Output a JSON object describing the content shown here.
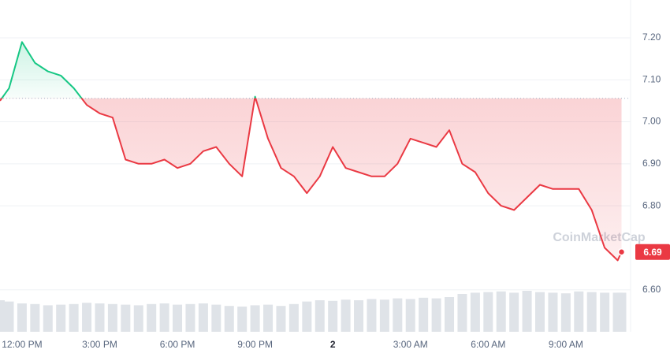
{
  "chart_data": {
    "type": "line",
    "x": [
      11.15,
      11.5,
      12,
      12.5,
      13,
      13.5,
      14,
      14.5,
      15,
      15.5,
      16,
      16.5,
      17,
      17.5,
      18,
      18.5,
      19,
      19.5,
      20,
      20.5,
      21,
      21.5,
      22,
      22.5,
      23,
      23.5,
      24,
      24.5,
      25,
      25.5,
      26,
      26.5,
      27,
      27.5,
      28,
      28.5,
      29,
      29.5,
      30,
      30.5,
      31,
      31.5,
      32,
      32.5,
      33,
      33.5,
      34,
      34.5,
      35,
      35.15
    ],
    "series": [
      {
        "values": [
          7.05,
          7.08,
          7.19,
          7.14,
          7.12,
          7.11,
          7.08,
          7.04,
          7.02,
          7.01,
          6.91,
          6.9,
          6.9,
          6.91,
          6.89,
          6.9,
          6.93,
          6.94,
          6.9,
          6.87,
          7.06,
          6.96,
          6.89,
          6.87,
          6.83,
          6.87,
          6.94,
          6.89,
          6.88,
          6.87,
          6.87,
          6.9,
          6.96,
          6.95,
          6.94,
          6.98,
          6.9,
          6.88,
          6.83,
          6.8,
          6.79,
          6.82,
          6.85,
          6.84,
          6.84,
          6.84,
          6.79,
          6.7,
          6.67,
          6.69
        ]
      }
    ],
    "volume": [
      50,
      48,
      45,
      44,
      42,
      43,
      44,
      46,
      45,
      44,
      43,
      42,
      44,
      45,
      43,
      44,
      45,
      43,
      41,
      40,
      42,
      43,
      41,
      44,
      48,
      50,
      49,
      51,
      50,
      52,
      51,
      53,
      52,
      54,
      53,
      55,
      60,
      62,
      63,
      64,
      62,
      65,
      63,
      62,
      61,
      64,
      63,
      62,
      62,
      62
    ],
    "volume_lim": [
      0,
      100
    ],
    "reference_line": 7.056,
    "xlim": [
      11.15,
      35.5
    ],
    "xticks": [
      {
        "value": 12,
        "label": "12:00 PM"
      },
      {
        "value": 15,
        "label": "3:00 PM"
      },
      {
        "value": 18,
        "label": "6:00 PM"
      },
      {
        "value": 21,
        "label": "9:00 PM"
      },
      {
        "value": 24,
        "label": "2"
      },
      {
        "value": 27,
        "label": "3:00 AM"
      },
      {
        "value": 30,
        "label": "6:00 AM"
      },
      {
        "value": 33,
        "label": "9:00 AM"
      }
    ],
    "ylim": [
      6.5,
      7.29
    ],
    "yticks": [
      {
        "value": 6.6,
        "label": "6.60"
      },
      {
        "value": 6.8,
        "label": "6.80"
      },
      {
        "value": 6.9,
        "label": "6.90"
      },
      {
        "value": 7.0,
        "label": "7.00"
      },
      {
        "value": 7.1,
        "label": "7.10"
      },
      {
        "value": 7.2,
        "label": "7.20"
      }
    ],
    "grid": true,
    "colors": {
      "up": "#16c784",
      "down": "#ea3943",
      "volume": "#dfe3e8"
    },
    "watermark": "CoinMarketCap"
  }
}
